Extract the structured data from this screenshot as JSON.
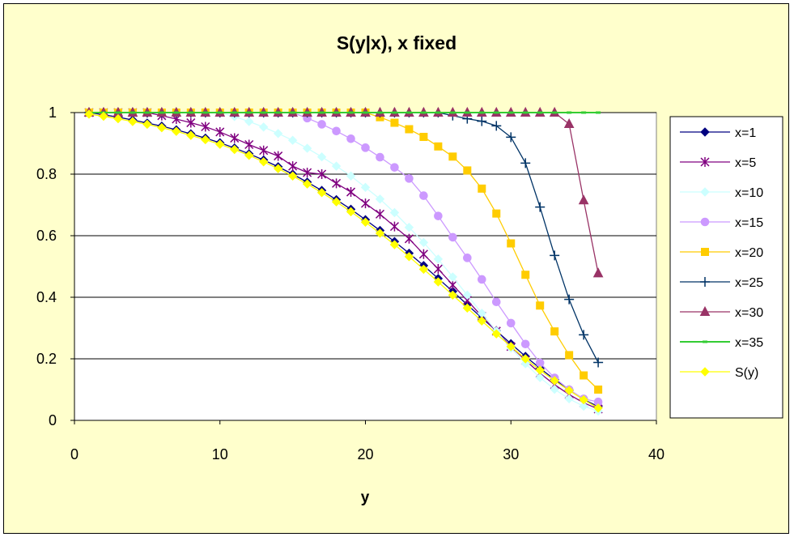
{
  "chart_data": {
    "type": "line",
    "title": "S(y|x), x fixed",
    "xlabel": "y",
    "ylabel": "",
    "xlim": [
      0,
      40
    ],
    "ylim": [
      0,
      1
    ],
    "xticks": [
      "0",
      "10",
      "20",
      "30",
      "40"
    ],
    "yticks": [
      "0",
      "0.2",
      "0.4",
      "0.6",
      "0.8",
      "1"
    ],
    "grid": "horizontal",
    "legend_position": "right",
    "plot_background": "#ffffff",
    "chart_background": "#ffffcc",
    "series": [
      {
        "name": "x=1",
        "color": "#000080",
        "marker": "diamond",
        "x": [
          1,
          2,
          3,
          4,
          5,
          6,
          7,
          8,
          9,
          10,
          11,
          12,
          13,
          14,
          15,
          16,
          17,
          18,
          19,
          20,
          21,
          22,
          23,
          24,
          25,
          26,
          27,
          28,
          29,
          30,
          31,
          32,
          33,
          34,
          35,
          36
        ],
        "y": [
          1.0,
          0.993,
          0.985,
          0.976,
          0.966,
          0.956,
          0.944,
          0.931,
          0.917,
          0.902,
          0.885,
          0.866,
          0.846,
          0.824,
          0.8,
          0.774,
          0.747,
          0.717,
          0.686,
          0.652,
          0.617,
          0.581,
          0.543,
          0.503,
          0.461,
          0.419,
          0.376,
          0.333,
          0.291,
          0.249,
          0.208,
          0.169,
          0.133,
          0.099,
          0.068,
          0.045
        ]
      },
      {
        "name": "x=5",
        "color": "#800080",
        "marker": "star",
        "x": [
          1,
          2,
          3,
          4,
          5,
          6,
          7,
          8,
          9,
          10,
          11,
          12,
          13,
          14,
          15,
          16,
          17,
          18,
          19,
          20,
          21,
          22,
          23,
          24,
          25,
          26,
          27,
          28,
          29,
          30,
          31,
          32,
          33,
          34,
          35,
          36
        ],
        "y": [
          1.0,
          1.0,
          1.0,
          1.0,
          1.0,
          0.99,
          0.979,
          0.967,
          0.954,
          0.937,
          0.917,
          0.896,
          0.877,
          0.859,
          0.826,
          0.805,
          0.8,
          0.77,
          0.742,
          0.705,
          0.67,
          0.63,
          0.59,
          0.54,
          0.492,
          0.44,
          0.39,
          0.338,
          0.29,
          0.24,
          0.195,
          0.153,
          0.116,
          0.084,
          0.057,
          0.037
        ]
      },
      {
        "name": "x=10",
        "color": "#ccffff",
        "marker": "diamond",
        "x": [
          1,
          2,
          3,
          4,
          5,
          6,
          7,
          8,
          9,
          10,
          11,
          12,
          13,
          14,
          15,
          16,
          17,
          18,
          19,
          20,
          21,
          22,
          23,
          24,
          25,
          26,
          27,
          28,
          29,
          30,
          31,
          32,
          33,
          34,
          35,
          36
        ],
        "y": [
          1.0,
          1.0,
          1.0,
          1.0,
          1.0,
          1.0,
          1.0,
          1.0,
          1.0,
          1.0,
          0.987,
          0.971,
          0.953,
          0.932,
          0.91,
          0.884,
          0.856,
          0.826,
          0.794,
          0.757,
          0.719,
          0.675,
          0.627,
          0.578,
          0.524,
          0.466,
          0.407,
          0.348,
          0.29,
          0.235,
          0.184,
          0.139,
          0.101,
          0.07,
          0.046,
          0.03
        ]
      },
      {
        "name": "x=15",
        "color": "#cc99ff",
        "marker": "circle",
        "x": [
          1,
          2,
          3,
          4,
          5,
          6,
          7,
          8,
          9,
          10,
          11,
          12,
          13,
          14,
          15,
          16,
          17,
          18,
          19,
          20,
          21,
          22,
          23,
          24,
          25,
          26,
          27,
          28,
          29,
          30,
          31,
          32,
          33,
          34,
          35,
          36
        ],
        "y": [
          1.0,
          1.0,
          1.0,
          1.0,
          1.0,
          1.0,
          1.0,
          1.0,
          1.0,
          1.0,
          1.0,
          1.0,
          1.0,
          1.0,
          1.0,
          0.982,
          0.962,
          0.94,
          0.915,
          0.886,
          0.855,
          0.822,
          0.786,
          0.73,
          0.664,
          0.595,
          0.528,
          0.458,
          0.385,
          0.316,
          0.248,
          0.187,
          0.138,
          0.1,
          0.07,
          0.06
        ]
      },
      {
        "name": "x=20",
        "color": "#ffcc00",
        "marker": "square",
        "x": [
          1,
          2,
          3,
          4,
          5,
          6,
          7,
          8,
          9,
          10,
          11,
          12,
          13,
          14,
          15,
          16,
          17,
          18,
          19,
          20,
          21,
          22,
          23,
          24,
          25,
          26,
          27,
          28,
          29,
          30,
          31,
          32,
          33,
          34,
          35,
          36
        ],
        "y": [
          1.0,
          1.0,
          1.0,
          1.0,
          1.0,
          1.0,
          1.0,
          1.0,
          1.0,
          1.0,
          1.0,
          1.0,
          1.0,
          1.0,
          1.0,
          1.0,
          1.0,
          1.0,
          1.0,
          1.0,
          0.985,
          0.967,
          0.946,
          0.921,
          0.89,
          0.857,
          0.812,
          0.753,
          0.672,
          0.575,
          0.473,
          0.373,
          0.289,
          0.212,
          0.146,
          0.1
        ]
      },
      {
        "name": "x=25",
        "color": "#003366",
        "marker": "plus",
        "x": [
          1,
          2,
          3,
          4,
          5,
          6,
          7,
          8,
          9,
          10,
          11,
          12,
          13,
          14,
          15,
          16,
          17,
          18,
          19,
          20,
          21,
          22,
          23,
          24,
          25,
          26,
          27,
          28,
          29,
          30,
          31,
          32,
          33,
          34,
          35,
          36
        ],
        "y": [
          1.0,
          1.0,
          1.0,
          1.0,
          1.0,
          1.0,
          1.0,
          1.0,
          1.0,
          1.0,
          1.0,
          1.0,
          1.0,
          1.0,
          1.0,
          1.0,
          1.0,
          1.0,
          1.0,
          1.0,
          1.0,
          1.0,
          1.0,
          1.0,
          1.0,
          0.99,
          0.98,
          0.972,
          0.957,
          0.92,
          0.836,
          0.693,
          0.536,
          0.393,
          0.278,
          0.188
        ]
      },
      {
        "name": "x=30",
        "color": "#993366",
        "marker": "triangle",
        "x": [
          1,
          2,
          3,
          4,
          5,
          6,
          7,
          8,
          9,
          10,
          11,
          12,
          13,
          14,
          15,
          16,
          17,
          18,
          19,
          20,
          21,
          22,
          23,
          24,
          25,
          26,
          27,
          28,
          29,
          30,
          31,
          32,
          33,
          34,
          35,
          36
        ],
        "y": [
          1.0,
          1.0,
          1.0,
          1.0,
          1.0,
          1.0,
          1.0,
          1.0,
          1.0,
          1.0,
          1.0,
          1.0,
          1.0,
          1.0,
          1.0,
          1.0,
          1.0,
          1.0,
          1.0,
          1.0,
          1.0,
          1.0,
          1.0,
          1.0,
          1.0,
          1.0,
          1.0,
          1.0,
          1.0,
          1.0,
          1.0,
          1.0,
          1.0,
          0.963,
          0.715,
          0.478
        ]
      },
      {
        "name": "x=35",
        "color": "#33cc33",
        "marker": "dash",
        "x": [
          1,
          2,
          3,
          4,
          5,
          6,
          7,
          8,
          9,
          10,
          11,
          12,
          13,
          14,
          15,
          16,
          17,
          18,
          19,
          20,
          21,
          22,
          23,
          24,
          25,
          26,
          27,
          28,
          29,
          30,
          31,
          32,
          33,
          34,
          35,
          36
        ],
        "y": [
          1.0,
          1.0,
          1.0,
          1.0,
          1.0,
          1.0,
          1.0,
          1.0,
          1.0,
          1.0,
          1.0,
          1.0,
          1.0,
          1.0,
          1.0,
          1.0,
          1.0,
          1.0,
          1.0,
          1.0,
          1.0,
          1.0,
          1.0,
          1.0,
          1.0,
          1.0,
          1.0,
          1.0,
          1.0,
          1.0,
          1.0,
          1.0,
          1.0,
          1.0,
          1.0,
          1.0
        ]
      },
      {
        "name": "S(y)",
        "color": "#ffff00",
        "marker": "diamond",
        "x": [
          1,
          2,
          3,
          4,
          5,
          6,
          7,
          8,
          9,
          10,
          11,
          12,
          13,
          14,
          15,
          16,
          17,
          18,
          19,
          20,
          21,
          22,
          23,
          24,
          25,
          26,
          27,
          28,
          29,
          30,
          31,
          32,
          33,
          34,
          35,
          36
        ],
        "y": [
          0.995,
          0.988,
          0.98,
          0.971,
          0.962,
          0.951,
          0.939,
          0.926,
          0.912,
          0.897,
          0.88,
          0.861,
          0.84,
          0.818,
          0.794,
          0.768,
          0.74,
          0.71,
          0.678,
          0.644,
          0.608,
          0.571,
          0.532,
          0.491,
          0.45,
          0.407,
          0.365,
          0.323,
          0.281,
          0.24,
          0.2,
          0.163,
          0.129,
          0.097,
          0.067,
          0.04
        ]
      }
    ]
  }
}
